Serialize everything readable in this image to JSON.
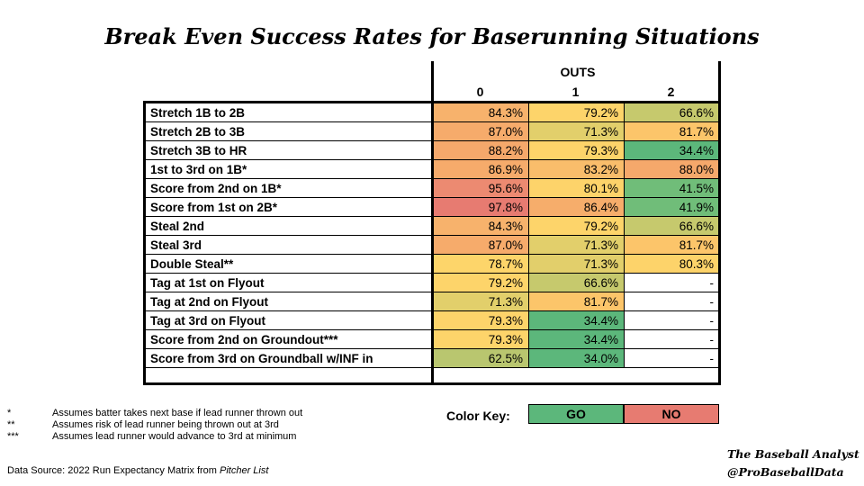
{
  "title": "Break Even Success Rates for Baserunning Situations",
  "chart_data": {
    "type": "table",
    "group_header": "OUTS",
    "columns": [
      "0",
      "1",
      "2"
    ],
    "rows": [
      {
        "label": "Stretch 1B to 2B",
        "values": [
          "84.3%",
          "79.2%",
          "66.6%"
        ],
        "colors": [
          "#f7b26c",
          "#fdd46a",
          "#c6c96d"
        ]
      },
      {
        "label": "Stretch 2B to 3B",
        "values": [
          "87.0%",
          "71.3%",
          "81.7%"
        ],
        "colors": [
          "#f6ab6b",
          "#e2cf6b",
          "#fcc56a"
        ]
      },
      {
        "label": "Stretch 3B to HR",
        "values": [
          "88.2%",
          "79.3%",
          "34.4%"
        ],
        "colors": [
          "#f5a86b",
          "#fdd46a",
          "#5cb77b"
        ]
      },
      {
        "label": "1st to 3rd on 1B*",
        "values": [
          "86.9%",
          "83.2%",
          "88.0%"
        ],
        "colors": [
          "#f6ab6b",
          "#f9bd6b",
          "#f5a86b"
        ]
      },
      {
        "label": "Score from 2nd on 1B*",
        "values": [
          "95.6%",
          "80.1%",
          "41.5%"
        ],
        "colors": [
          "#ec8a71",
          "#fdd36a",
          "#70bd79"
        ]
      },
      {
        "label": "Score from 1st on 2B*",
        "values": [
          "97.8%",
          "86.4%",
          "41.9%"
        ],
        "colors": [
          "#e77b71",
          "#f6ad6b",
          "#70bd79"
        ]
      },
      {
        "label": "Steal 2nd",
        "values": [
          "84.3%",
          "79.2%",
          "66.6%"
        ],
        "colors": [
          "#f7b26c",
          "#fdd46a",
          "#c6c96d"
        ]
      },
      {
        "label": "Steal 3rd",
        "values": [
          "87.0%",
          "71.3%",
          "81.7%"
        ],
        "colors": [
          "#f6ab6b",
          "#e2cf6b",
          "#fcc56a"
        ]
      },
      {
        "label": "Double Steal**",
        "values": [
          "78.7%",
          "71.3%",
          "80.3%"
        ],
        "colors": [
          "#fdd56a",
          "#e2cf6b",
          "#fdd36a"
        ]
      },
      {
        "label": "Tag at 1st on Flyout",
        "values": [
          "79.2%",
          "66.6%",
          "-"
        ],
        "colors": [
          "#fdd46a",
          "#c6c96d",
          "#ffffff"
        ]
      },
      {
        "label": "Tag at 2nd on Flyout",
        "values": [
          "71.3%",
          "81.7%",
          "-"
        ],
        "colors": [
          "#e2cf6b",
          "#fcc56a",
          "#ffffff"
        ]
      },
      {
        "label": "Tag at 3rd on Flyout",
        "values": [
          "79.3%",
          "34.4%",
          "-"
        ],
        "colors": [
          "#fdd46a",
          "#5cb77b",
          "#ffffff"
        ]
      },
      {
        "label": "Score from 2nd on Groundout***",
        "values": [
          "79.3%",
          "34.4%",
          "-"
        ],
        "colors": [
          "#fdd46a",
          "#5cb77b",
          "#ffffff"
        ]
      },
      {
        "label": "Score from 3rd on Groundball w/INF in",
        "values": [
          "62.5%",
          "34.0%",
          "-"
        ],
        "colors": [
          "#b9c66f",
          "#5cb77b",
          "#ffffff"
        ]
      }
    ]
  },
  "color_key": {
    "label": "Color Key:",
    "go_label": "GO",
    "go_color": "#5cb77b",
    "no_label": "NO",
    "no_color": "#e77b71"
  },
  "footnotes": [
    {
      "mark": "*",
      "text": "Assumes batter takes next base if lead runner thrown out"
    },
    {
      "mark": "**",
      "text": "Assumes risk of lead runner being thrown out at 3rd"
    },
    {
      "mark": "***",
      "text": "Assumes lead runner would advance to 3rd at minimum"
    }
  ],
  "source": {
    "prefix": "Data Source: 2022 Run Expectancy Matrix from ",
    "italic": "Pitcher List"
  },
  "credit": {
    "line1": "The Baseball Analyst",
    "line2": "@ProBaseballData"
  }
}
